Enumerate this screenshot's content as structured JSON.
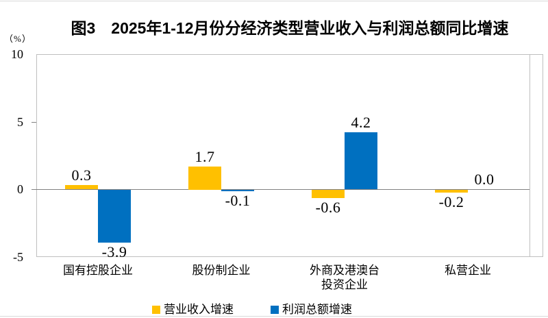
{
  "page": {
    "top_rule": true,
    "bottom_rule": true
  },
  "chart_data": {
    "type": "bar",
    "title": "图3　2025年1-12月份分经济类型营业收入与利润总额同比增速",
    "unit_label": "（%）",
    "xlabel": "",
    "ylabel": "%",
    "ylim": [
      -5,
      10
    ],
    "yticks": [
      10,
      5,
      0,
      -5
    ],
    "grid": false,
    "legend_position": "bottom",
    "value_labels": true,
    "categories": [
      "国有控股企业",
      "股份制企业",
      "外商及港澳台\n投资企业",
      "私营企业"
    ],
    "series": [
      {
        "name": "营业收入增速",
        "color": "#FFC000",
        "values": [
          0.3,
          1.7,
          -0.6,
          -0.2
        ]
      },
      {
        "name": "利润总额增速",
        "color": "#0070C0",
        "values": [
          -3.9,
          -0.1,
          4.2,
          0.0
        ]
      }
    ],
    "colors": {
      "plot_border": "#bfbfbf",
      "zero_line": "#808080",
      "text": "#000000"
    }
  }
}
